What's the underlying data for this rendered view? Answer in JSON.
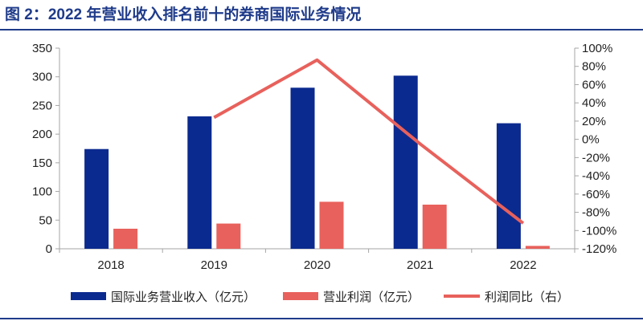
{
  "title": "图 2：2022 年营业收入排名前十的券商国际业务情况",
  "colors": {
    "revenue": "#0b2a8f",
    "profit": "#e8615c",
    "yoy": "#e8615c",
    "axis": "#a6a6a6",
    "title": "#1f3b8a"
  },
  "legend": {
    "revenue": "国际业务营业收入（亿元）",
    "profit": "营业利润（亿元）",
    "yoy": "利润同比（右）"
  },
  "chart_data": {
    "type": "bar",
    "categories": [
      "2018",
      "2019",
      "2020",
      "2021",
      "2022"
    ],
    "series": [
      {
        "name": "国际业务营业收入（亿元）",
        "type": "bar",
        "axis": "left",
        "values": [
          174,
          231,
          281,
          302,
          219
        ]
      },
      {
        "name": "营业利润（亿元）",
        "type": "bar",
        "axis": "left",
        "values": [
          35,
          44,
          82,
          77,
          5
        ]
      },
      {
        "name": "利润同比（右）",
        "type": "line",
        "axis": "right",
        "values": [
          null,
          24,
          87,
          -5,
          -92
        ]
      }
    ],
    "y_left": {
      "min": 0,
      "max": 350,
      "ticks": [
        0,
        50,
        100,
        150,
        200,
        250,
        300,
        350
      ]
    },
    "y_right": {
      "min": -120,
      "max": 100,
      "ticks": [
        -120,
        -100,
        -80,
        -60,
        -40,
        -20,
        0,
        20,
        40,
        60,
        80,
        100
      ],
      "tick_labels": [
        "-120%",
        "-100%",
        "-80%",
        "-60%",
        "-40%",
        "-20%",
        "0%",
        "20%",
        "40%",
        "60%",
        "80%",
        "100%"
      ]
    },
    "grid": false,
    "legend_position": "bottom"
  }
}
